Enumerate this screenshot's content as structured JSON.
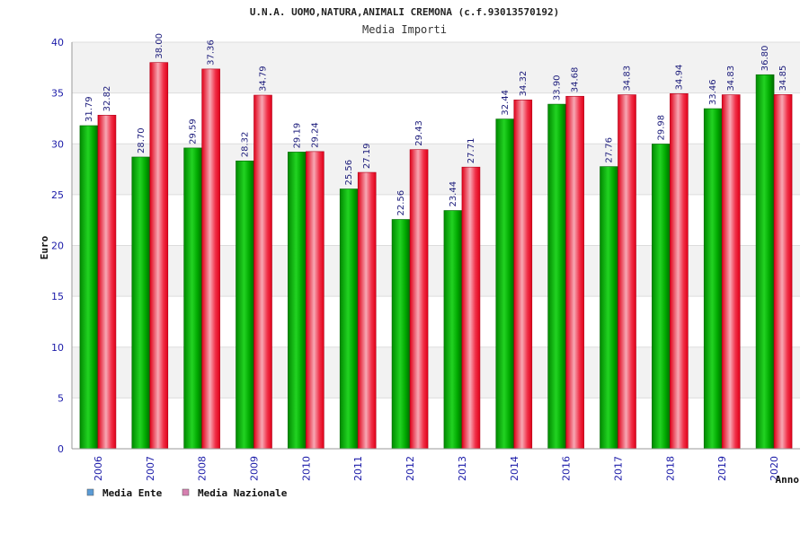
{
  "chart_data": {
    "type": "bar",
    "title": "U.N.A. UOMO,NATURA,ANIMALI CREMONA (c.f.93013570192)",
    "subtitle": "Media Importi",
    "xlabel": "Anno",
    "ylabel": "Euro",
    "ylim": [
      0,
      40
    ],
    "yticks": [
      0,
      5,
      10,
      15,
      20,
      25,
      30,
      35,
      40
    ],
    "grid": true,
    "legend_position": "bottom-left",
    "categories": [
      "2006",
      "2007",
      "2008",
      "2009",
      "2010",
      "2011",
      "2012",
      "2013",
      "2014",
      "2016",
      "2017",
      "2018",
      "2019",
      "2020"
    ],
    "series": [
      {
        "name": "Media Ente",
        "color": "#00b000",
        "legend_color": "#5b9bd5",
        "values": [
          31.79,
          28.7,
          29.59,
          28.32,
          29.19,
          25.56,
          22.56,
          23.44,
          32.44,
          33.9,
          27.76,
          29.98,
          33.46,
          36.8
        ],
        "labels": [
          "31.79",
          "28.70",
          "29.59",
          "28.32",
          "29.19",
          "25.56",
          "22.56",
          "23.44",
          "32.44",
          "33.90",
          "27.76",
          "29.98",
          "33.46",
          "36.80"
        ]
      },
      {
        "name": "Media Nazionale",
        "color": "#e8102a",
        "legend_color": "#d67fb0",
        "values": [
          32.82,
          38.0,
          37.36,
          34.79,
          29.24,
          27.19,
          29.43,
          27.71,
          34.32,
          34.68,
          34.83,
          34.94,
          34.83,
          34.85
        ],
        "labels": [
          "32.82",
          "38.00",
          "37.36",
          "34.79",
          "29.24",
          "27.19",
          "29.43",
          "27.71",
          "34.32",
          "34.68",
          "34.83",
          "34.94",
          "34.83",
          "34.85"
        ]
      }
    ]
  }
}
